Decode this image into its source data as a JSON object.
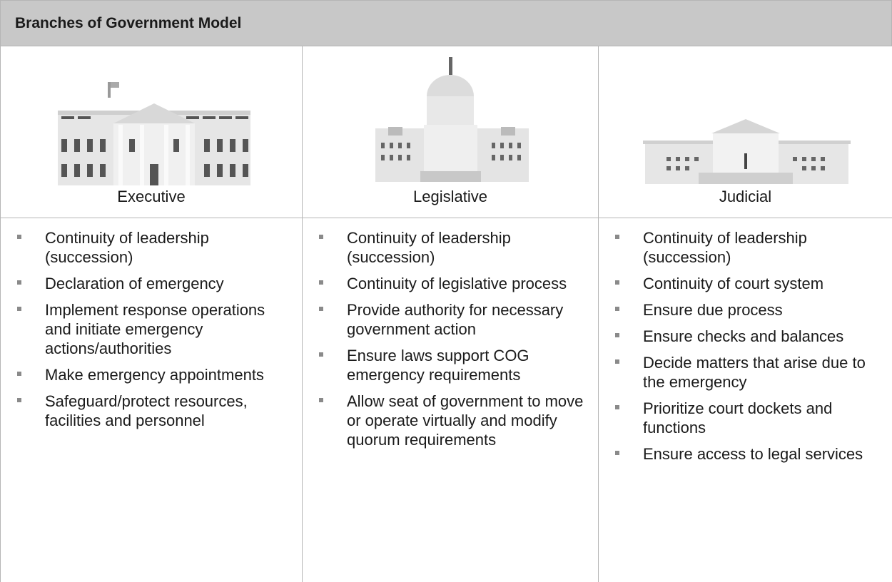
{
  "header": {
    "title": "Branches of Government Model"
  },
  "columns": [
    {
      "label": "Executive",
      "items": [
        "Continuity of leadership (succession)",
        "Declaration of emergency",
        "Implement response operations and initiate emergency actions/authorities",
        "Make emergency appointments",
        "Safeguard/protect resources, facilities and personnel"
      ]
    },
    {
      "label": "Legislative",
      "items": [
        "Continuity of leadership (succession)",
        "Continuity of legislative process",
        "Provide authority for necessary government action",
        "Ensure laws support COG emergency requirements",
        "Allow seat of government to move or operate virtually and modify quorum requirements"
      ]
    },
    {
      "label": "Judicial",
      "items": [
        "Continuity of leadership (succession)",
        "Continuity of court system",
        "Ensure due process",
        "Ensure checks and balances",
        "Decide matters that arise due to the emergency",
        "Prioritize court dockets and functions",
        "Ensure access to legal services"
      ]
    }
  ]
}
